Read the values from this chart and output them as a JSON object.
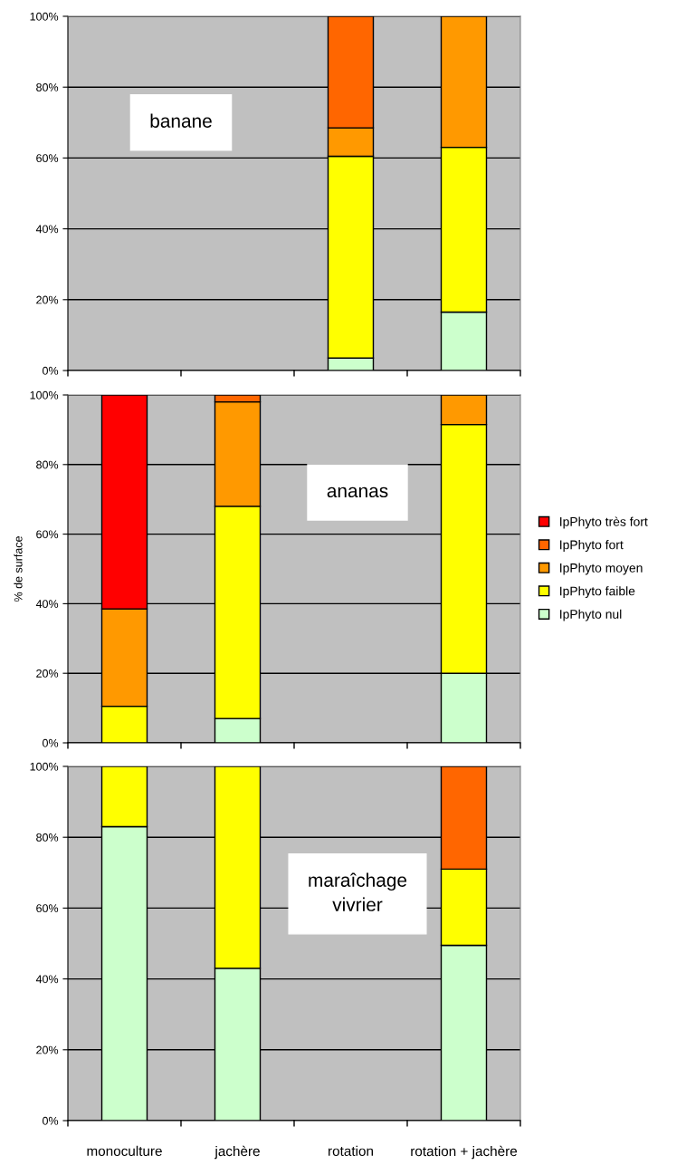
{
  "chart_data": [
    {
      "type": "bar",
      "stacked": true,
      "categories": [
        null,
        null,
        null,
        null
      ],
      "annotations": [
        "banane"
      ],
      "ylim": [
        0,
        100
      ],
      "yticks": [
        {
          "value": 0,
          "label": "0%"
        },
        {
          "value": 20,
          "label": "20%"
        },
        {
          "value": 40,
          "label": "40%"
        },
        {
          "value": 60,
          "label": "60%"
        },
        {
          "value": 80,
          "label": "80%"
        },
        {
          "value": 100,
          "label": "100%"
        }
      ],
      "grid": "y",
      "tick_labels": "y",
      "series": [
        {
          "color": "#ccffcc",
          "values": [
            null,
            null,
            3.5,
            16.5
          ]
        },
        {
          "color": "#ffff00",
          "values": [
            null,
            null,
            57,
            46.5
          ]
        },
        {
          "color": "#ff9900",
          "values": [
            null,
            null,
            8,
            37
          ]
        },
        {
          "color": "#ff6600",
          "values": [
            null,
            null,
            31.5,
            null
          ]
        }
      ]
    },
    {
      "type": "bar",
      "stacked": true,
      "categories": [
        null,
        null,
        null,
        null
      ],
      "annotations": [
        "ananas"
      ],
      "ylabel": "% de surface",
      "ylim": [
        0,
        100
      ],
      "yticks": [
        {
          "value": 0,
          "label": "0%"
        },
        {
          "value": 20,
          "label": "20%"
        },
        {
          "value": 40,
          "label": "40%"
        },
        {
          "value": 60,
          "label": "60%"
        },
        {
          "value": 80,
          "label": "80%"
        },
        {
          "value": 100,
          "label": "100%"
        }
      ],
      "grid": "y",
      "tick_labels": "y",
      "legend": "right",
      "series": [
        {
          "name": "IpPhyto nul",
          "color": "#ccffcc",
          "values": [
            null,
            7,
            null,
            20
          ]
        },
        {
          "name": "IpPhyto faible",
          "color": "#ffff00",
          "values": [
            10.5,
            61,
            null,
            71.5
          ]
        },
        {
          "name": "IpPhyto moyen",
          "color": "#ff9900",
          "values": [
            28,
            30,
            null,
            8.5
          ]
        },
        {
          "name": "IpPhyto fort",
          "color": "#ff6600",
          "values": [
            null,
            2,
            null,
            null
          ]
        },
        {
          "name": "IpPhyto très fort",
          "color": "#ff0000",
          "values": [
            61.5,
            null,
            null,
            null
          ]
        }
      ]
    },
    {
      "type": "bar",
      "stacked": true,
      "categories": [
        "monoculture",
        "jachère",
        "rotation",
        "rotation + jachère"
      ],
      "annotations": [
        "maraîchage\nvivrier"
      ],
      "ylim": [
        0,
        100
      ],
      "yticks": [
        {
          "value": 0,
          "label": "0%"
        },
        {
          "value": 20,
          "label": "20%"
        },
        {
          "value": 40,
          "label": "40%"
        },
        {
          "value": 60,
          "label": "60%"
        },
        {
          "value": 80,
          "label": "80%"
        },
        {
          "value": 100,
          "label": "100%"
        }
      ],
      "grid": "y",
      "series": [
        {
          "color": "#ccffcc",
          "values": [
            83,
            43,
            null,
            49.5
          ]
        },
        {
          "color": "#ffff00",
          "values": [
            17,
            57,
            null,
            21.5
          ]
        },
        {
          "color": "#ff6600",
          "values": [
            null,
            null,
            null,
            29
          ]
        }
      ]
    }
  ]
}
